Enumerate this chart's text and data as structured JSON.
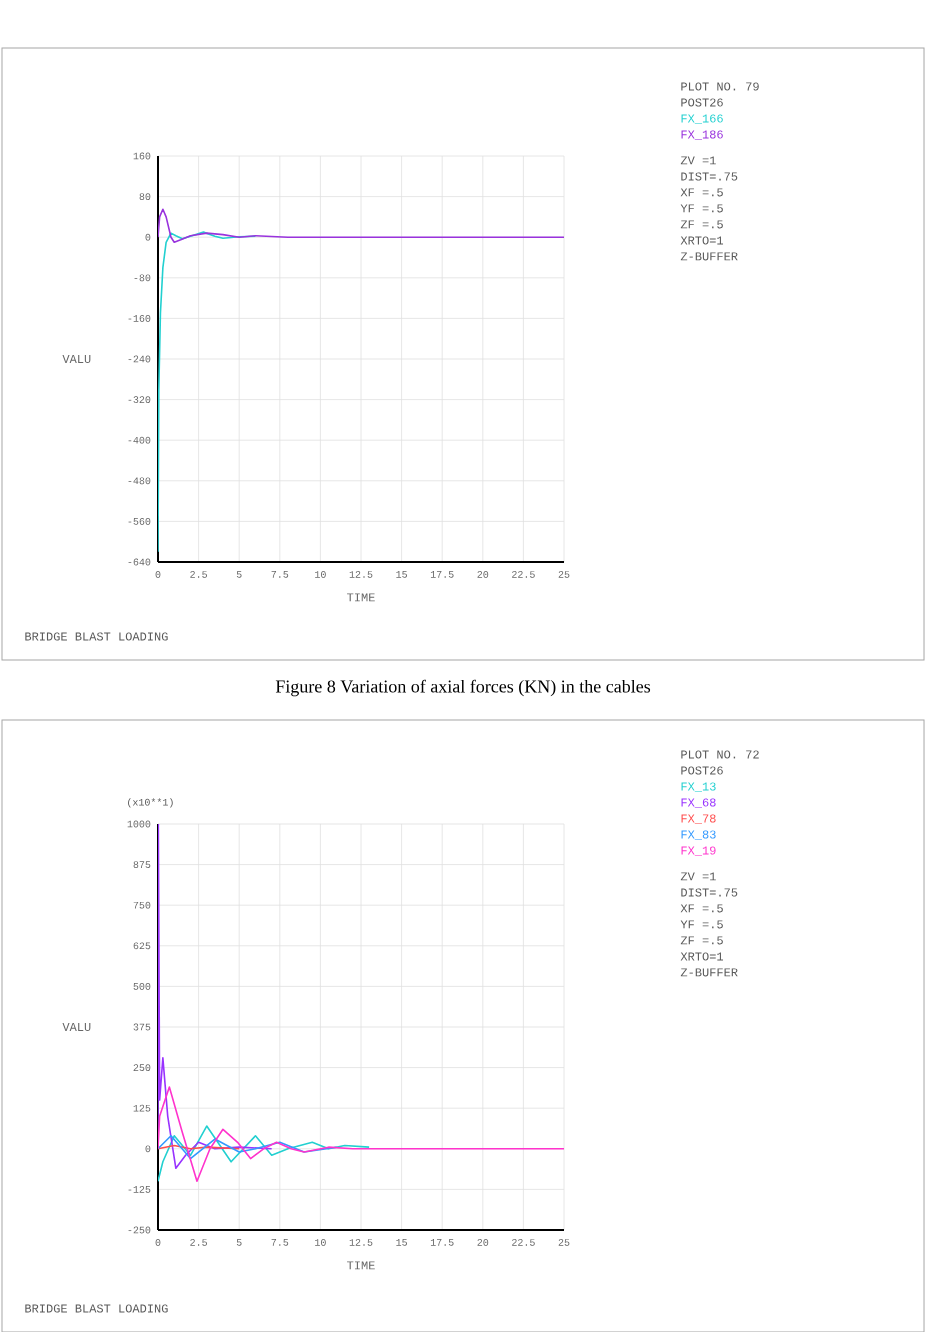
{
  "chart_data": [
    {
      "type": "line",
      "xlabel": "TIME",
      "ylabel": "VALU",
      "xlim": [
        0,
        25
      ],
      "ylim": [
        -640,
        160
      ],
      "xticks": [
        0,
        2.5,
        5,
        7.5,
        10,
        12.5,
        15,
        17.5,
        20,
        22.5,
        25
      ],
      "yticks": [
        -640,
        -560,
        -480,
        -400,
        -320,
        -240,
        -160,
        -80,
        0,
        80,
        160
      ],
      "grid": true,
      "legend": "right",
      "annotations": [
        "PLOT NO.  79",
        "POST26",
        "ZV  =1",
        "DIST=.75",
        "XF  =.5",
        "YF  =.5",
        "ZF  =.5",
        "XRTO=1",
        "Z-BUFFER",
        "BRIDGE BLAST LOADING",
        "Figure 8 Variation of axial forces (KN) in the cables"
      ],
      "series": [
        {
          "name": "FX_166",
          "color": "#22d0d0",
          "x": [
            0,
            0.05,
            0.15,
            0.3,
            0.5,
            0.8,
            1.1,
            1.5,
            2,
            2.8,
            3.5,
            4,
            5,
            6
          ],
          "values": [
            -620,
            -300,
            -150,
            -60,
            -10,
            8,
            3,
            -3,
            2,
            10,
            2,
            -2,
            1,
            2
          ]
        },
        {
          "name": "FX_186",
          "color": "#9933dd",
          "x": [
            0,
            0.1,
            0.3,
            0.5,
            0.8,
            1,
            1.4,
            2,
            3,
            4,
            5,
            6,
            8,
            12,
            25
          ],
          "values": [
            0,
            40,
            55,
            40,
            0,
            -10,
            -5,
            3,
            8,
            5,
            0,
            3,
            0,
            0,
            0
          ]
        }
      ]
    },
    {
      "type": "line",
      "xlabel": "TIME",
      "ylabel": "VALU",
      "xlim": [
        0,
        25
      ],
      "ylim": [
        -250,
        1000
      ],
      "xticks": [
        0,
        2.5,
        5,
        7.5,
        10,
        12.5,
        15,
        17.5,
        20,
        22.5,
        25
      ],
      "yticks": [
        -250,
        -125,
        0,
        125,
        250,
        375,
        500,
        625,
        750,
        875,
        1000
      ],
      "grid": true,
      "legend": "right",
      "annotations": [
        "PLOT NO.  72",
        "POST26",
        "ZV  =1",
        "DIST=.75",
        "XF  =.5",
        "YF  =.5",
        "ZF  =.5",
        "XRTO=1",
        "Z-BUFFER",
        "BRIDGE BLAST LOADING",
        "(x10**1)"
      ],
      "series": [
        {
          "name": "FX_13",
          "color": "#22d0d0",
          "x": [
            0,
            0.3,
            1,
            2,
            3,
            4.5,
            6,
            7,
            8,
            9.5,
            10.5,
            11.5,
            13
          ],
          "values": [
            -100,
            -40,
            40,
            -20,
            70,
            -40,
            40,
            -20,
            0,
            20,
            0,
            10,
            5
          ]
        },
        {
          "name": "FX_68",
          "color": "#9933ff",
          "x": [
            0,
            0.02,
            0.1,
            0.3,
            0.6,
            1.1,
            1.7,
            2.5,
            3.5,
            5,
            7
          ],
          "values": [
            0,
            1000,
            150,
            280,
            100,
            -60,
            -20,
            20,
            0,
            5,
            0
          ]
        },
        {
          "name": "FX_78",
          "color": "#ff4d4d",
          "x": [
            0,
            1,
            2,
            3,
            5
          ],
          "values": [
            0,
            10,
            0,
            5,
            0
          ]
        },
        {
          "name": "FX_83",
          "color": "#3399ff",
          "x": [
            0,
            0.8,
            2,
            3.5,
            5,
            6,
            7.5,
            9,
            11
          ],
          "values": [
            0,
            40,
            -30,
            30,
            -10,
            0,
            20,
            -10,
            5
          ]
        },
        {
          "name": "FX_19",
          "color": "#ff33cc",
          "x": [
            0,
            0.1,
            0.7,
            1.5,
            2.4,
            3.2,
            4,
            4.9,
            5.7,
            6.5,
            7.3,
            8.2,
            9,
            10.5,
            12,
            25
          ],
          "values": [
            0,
            100,
            190,
            50,
            -100,
            0,
            60,
            20,
            -30,
            0,
            20,
            0,
            -10,
            5,
            0,
            0
          ]
        }
      ]
    }
  ]
}
